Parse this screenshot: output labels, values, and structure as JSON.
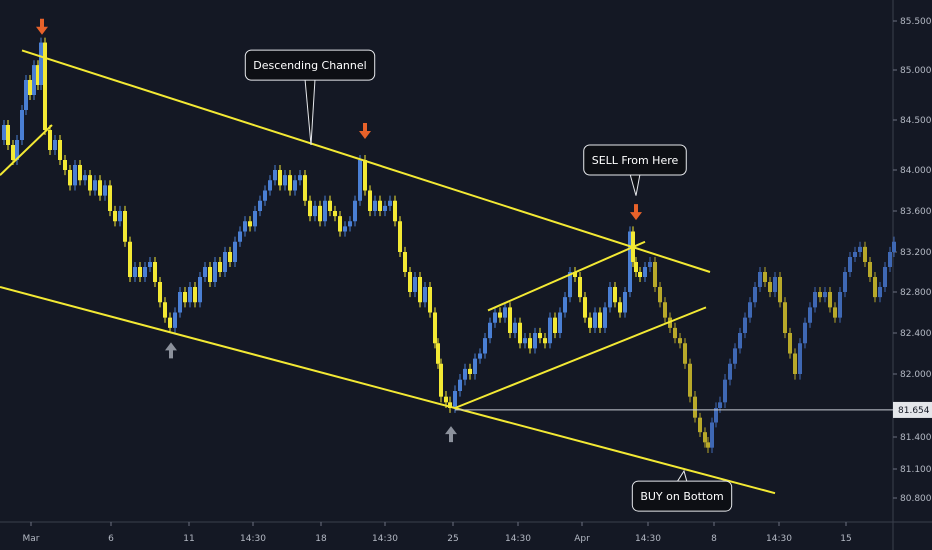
{
  "chart_data": {
    "type": "candlestick",
    "title": "",
    "xlabel": "",
    "ylabel": "",
    "ylim": [
      80.6,
      85.65
    ],
    "y_ticks": [
      80.8,
      81.1,
      81.4,
      81.7,
      82.0,
      82.4,
      82.8,
      83.2,
      83.6,
      84.0,
      84.5,
      85.0,
      85.5
    ],
    "y_tick_labels": [
      "80.800",
      "81.100",
      "81.400",
      "81.700",
      "82.000",
      "82.400",
      "82.800",
      "83.200",
      "83.600",
      "84.000",
      "84.500",
      "85.000",
      "85.500"
    ],
    "x_tick_labels": [
      "Mar",
      "6",
      "11",
      "14:30",
      "18",
      "14:30",
      "25",
      "14:30",
      "Apr",
      "14:30",
      "8",
      "14:30",
      "15"
    ],
    "current_price": "81.654",
    "grid": false,
    "colors": {
      "background": "#141824",
      "up_candle": "#4a7fd4",
      "down_candle": "#f3e934",
      "projection_down": "#b8a92a",
      "projection_up": "#3f68b4",
      "trendline": "#f3e934",
      "sell_arrow": "#e8622a",
      "buy_arrow": "#8c919c",
      "price_line": "#c8ccd4"
    },
    "price_path": [
      [
        0,
        84.3
      ],
      [
        4,
        84.45
      ],
      [
        8,
        84.25
      ],
      [
        13,
        84.1
      ],
      [
        17,
        84.3
      ],
      [
        22,
        84.6
      ],
      [
        26,
        84.9
      ],
      [
        30,
        84.75
      ],
      [
        34,
        85.05
      ],
      [
        38,
        84.85
      ],
      [
        41,
        85.28
      ],
      [
        45,
        84.4
      ],
      [
        50,
        84.2
      ],
      [
        55,
        84.3
      ],
      [
        60,
        84.1
      ],
      [
        65,
        84.0
      ],
      [
        70,
        83.85
      ],
      [
        75,
        84.05
      ],
      [
        80,
        83.9
      ],
      [
        85,
        83.95
      ],
      [
        90,
        83.8
      ],
      [
        95,
        83.9
      ],
      [
        100,
        83.75
      ],
      [
        105,
        83.85
      ],
      [
        110,
        83.6
      ],
      [
        115,
        83.5
      ],
      [
        120,
        83.6
      ],
      [
        125,
        83.3
      ],
      [
        130,
        82.95
      ],
      [
        135,
        83.05
      ],
      [
        140,
        82.95
      ],
      [
        145,
        83.05
      ],
      [
        150,
        83.1
      ],
      [
        155,
        82.9
      ],
      [
        160,
        82.7
      ],
      [
        165,
        82.55
      ],
      [
        170,
        82.45
      ],
      [
        175,
        82.6
      ],
      [
        180,
        82.8
      ],
      [
        185,
        82.7
      ],
      [
        190,
        82.85
      ],
      [
        195,
        82.7
      ],
      [
        200,
        82.95
      ],
      [
        205,
        83.05
      ],
      [
        210,
        82.9
      ],
      [
        215,
        83.1
      ],
      [
        220,
        83.0
      ],
      [
        225,
        83.2
      ],
      [
        230,
        83.1
      ],
      [
        235,
        83.3
      ],
      [
        240,
        83.4
      ],
      [
        245,
        83.5
      ],
      [
        250,
        83.45
      ],
      [
        255,
        83.6
      ],
      [
        260,
        83.7
      ],
      [
        265,
        83.8
      ],
      [
        270,
        83.9
      ],
      [
        275,
        84.0
      ],
      [
        280,
        83.85
      ],
      [
        285,
        83.95
      ],
      [
        290,
        83.8
      ],
      [
        295,
        83.9
      ],
      [
        300,
        83.95
      ],
      [
        305,
        83.7
      ],
      [
        310,
        83.55
      ],
      [
        315,
        83.65
      ],
      [
        320,
        83.5
      ],
      [
        325,
        83.7
      ],
      [
        330,
        83.6
      ],
      [
        335,
        83.55
      ],
      [
        340,
        83.4
      ],
      [
        345,
        83.45
      ],
      [
        350,
        83.5
      ],
      [
        355,
        83.7
      ],
      [
        360,
        84.1
      ],
      [
        365,
        83.8
      ],
      [
        370,
        83.6
      ],
      [
        375,
        83.7
      ],
      [
        380,
        83.6
      ],
      [
        385,
        83.65
      ],
      [
        390,
        83.7
      ],
      [
        395,
        83.5
      ],
      [
        400,
        83.2
      ],
      [
        405,
        83.0
      ],
      [
        410,
        82.8
      ],
      [
        415,
        82.95
      ],
      [
        420,
        82.7
      ],
      [
        425,
        82.85
      ],
      [
        430,
        82.6
      ],
      [
        435,
        82.3
      ],
      [
        438,
        82.1
      ],
      [
        441,
        81.8
      ],
      [
        446,
        81.75
      ],
      [
        450,
        81.7
      ],
      [
        455,
        81.85
      ],
      [
        460,
        81.95
      ],
      [
        465,
        82.05
      ],
      [
        470,
        82.0
      ],
      [
        475,
        82.15
      ],
      [
        480,
        82.2
      ],
      [
        485,
        82.35
      ],
      [
        490,
        82.5
      ],
      [
        495,
        82.6
      ],
      [
        500,
        82.55
      ],
      [
        505,
        82.65
      ],
      [
        510,
        82.4
      ],
      [
        515,
        82.5
      ],
      [
        520,
        82.3
      ],
      [
        525,
        82.35
      ],
      [
        530,
        82.25
      ],
      [
        535,
        82.4
      ],
      [
        540,
        82.35
      ],
      [
        545,
        82.3
      ],
      [
        550,
        82.55
      ],
      [
        555,
        82.4
      ],
      [
        560,
        82.6
      ],
      [
        565,
        82.75
      ],
      [
        570,
        83.0
      ],
      [
        575,
        82.95
      ],
      [
        580,
        82.75
      ],
      [
        585,
        82.55
      ],
      [
        590,
        82.45
      ],
      [
        595,
        82.6
      ],
      [
        600,
        82.45
      ],
      [
        605,
        82.65
      ],
      [
        610,
        82.85
      ],
      [
        615,
        82.7
      ],
      [
        620,
        82.6
      ],
      [
        625,
        82.8
      ],
      [
        630,
        83.4
      ],
      [
        633,
        83.1
      ],
      [
        636,
        83.0
      ],
      [
        640,
        82.95
      ],
      [
        645,
        83.05
      ],
      [
        650,
        83.1
      ],
      [
        655,
        82.85
      ],
      [
        660,
        82.7
      ],
      [
        665,
        82.55
      ],
      [
        670,
        82.45
      ],
      [
        675,
        82.35
      ],
      [
        680,
        82.3
      ],
      [
        685,
        82.1
      ],
      [
        690,
        81.8
      ],
      [
        695,
        81.6
      ],
      [
        700,
        81.45
      ],
      [
        705,
        81.35
      ],
      [
        708,
        81.3
      ],
      [
        712,
        81.55
      ],
      [
        716,
        81.7
      ],
      [
        720,
        81.75
      ],
      [
        725,
        81.95
      ],
      [
        730,
        82.1
      ],
      [
        735,
        82.25
      ],
      [
        740,
        82.4
      ],
      [
        745,
        82.55
      ],
      [
        750,
        82.7
      ],
      [
        755,
        82.85
      ],
      [
        760,
        83.0
      ],
      [
        765,
        82.9
      ],
      [
        770,
        82.8
      ],
      [
        775,
        82.95
      ],
      [
        780,
        82.7
      ],
      [
        785,
        82.4
      ],
      [
        790,
        82.2
      ],
      [
        795,
        82.0
      ],
      [
        800,
        82.3
      ],
      [
        805,
        82.5
      ],
      [
        810,
        82.65
      ],
      [
        815,
        82.8
      ],
      [
        820,
        82.75
      ],
      [
        825,
        82.8
      ],
      [
        830,
        82.65
      ],
      [
        835,
        82.55
      ],
      [
        840,
        82.8
      ],
      [
        845,
        83.0
      ],
      [
        850,
        83.15
      ],
      [
        855,
        83.2
      ],
      [
        860,
        83.25
      ],
      [
        865,
        83.1
      ],
      [
        870,
        82.95
      ],
      [
        875,
        82.75
      ],
      [
        880,
        82.85
      ],
      [
        885,
        83.05
      ],
      [
        890,
        83.2
      ],
      [
        894,
        83.3
      ]
    ],
    "trendlines": [
      [
        [
          22,
          85.2
        ],
        [
          710,
          83.0
        ]
      ],
      [
        [
          0,
          83.95
        ],
        [
          52,
          84.45
        ]
      ],
      [
        [
          0,
          82.85
        ],
        [
          775,
          80.85
        ]
      ],
      [
        [
          455,
          81.7
        ],
        [
          706,
          82.65
        ]
      ],
      [
        [
          488,
          82.62
        ],
        [
          645,
          83.3
        ]
      ],
      [
        [
          455,
          81.68
        ],
        [
          932,
          81.68
        ]
      ]
    ],
    "annotations": [
      {
        "text": "Descending Channel",
        "x": 310,
        "y": 85.05,
        "target_x": 311,
        "target_y": 84.25
      },
      {
        "text": "SELL From Here",
        "x": 635,
        "y": 84.1,
        "target_x": 636,
        "target_y": 83.75
      },
      {
        "text": "BUY on Bottom",
        "x": 682,
        "y": 80.82,
        "target_x": 684,
        "target_y": 81.08
      }
    ],
    "sell_signals": [
      [
        42,
        85.4
      ],
      [
        365,
        84.35
      ],
      [
        636,
        83.55
      ]
    ],
    "buy_signals": [
      [
        171,
        82.25
      ],
      [
        451,
        81.45
      ]
    ]
  }
}
